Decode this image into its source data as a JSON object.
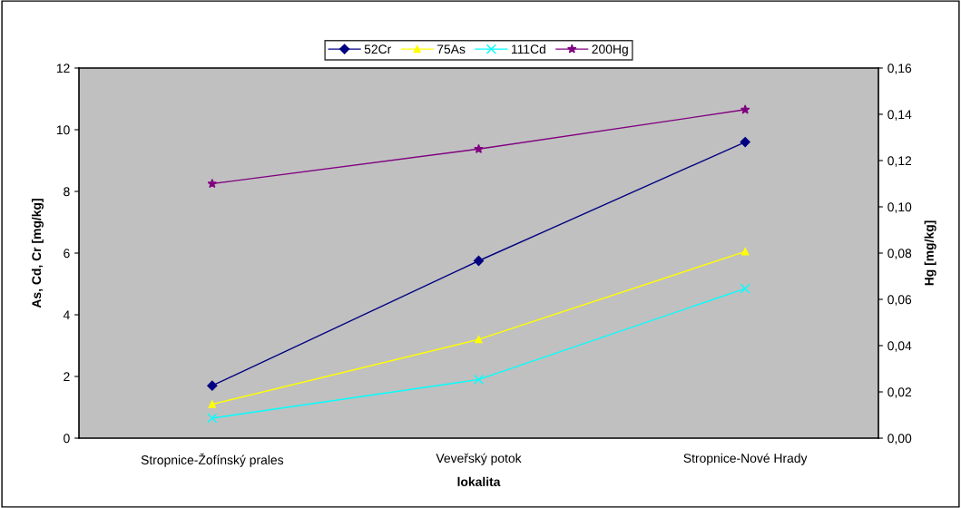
{
  "chart_data": {
    "type": "line",
    "xlabel": "lokalita",
    "ylabel": "As, Cd, Cr [mg/kg]",
    "y2label": "Hg [mg/kg]",
    "categories": [
      "Stropnice-Žofínský prales",
      "Veveřský potok",
      "Stropnice-Nové Hrady"
    ],
    "series": [
      {
        "name": "52Cr",
        "color": "#000080",
        "marker": "diamond",
        "values": [
          1.7,
          5.75,
          9.6
        ]
      },
      {
        "name": "75As",
        "color": "#ffff00",
        "marker": "triangle",
        "values": [
          1.1,
          3.2,
          6.05
        ]
      },
      {
        "name": "111Cd",
        "color": "#00ffff",
        "marker": "cross",
        "values": [
          0.65,
          1.9,
          4.85
        ]
      },
      {
        "name": "200Hg",
        "color": "#800080",
        "marker": "star",
        "axis": "y2",
        "values": [
          0.11,
          0.125,
          0.142
        ]
      }
    ],
    "ylim": [
      0,
      12
    ],
    "yticks": [
      0,
      2,
      4,
      6,
      8,
      10,
      12
    ],
    "y2lim": [
      0,
      0.16
    ],
    "y2ticks": [
      {
        "value": 0,
        "label": "0,00"
      },
      {
        "value": 0.02,
        "label": "0,02"
      },
      {
        "value": 0.04,
        "label": "0,04"
      },
      {
        "value": 0.06,
        "label": "0,06"
      },
      {
        "value": 0.08,
        "label": "0,08"
      },
      {
        "value": 0.1,
        "label": "0,10"
      },
      {
        "value": 0.12,
        "label": "0,12"
      },
      {
        "value": 0.14,
        "label": "0,14"
      },
      {
        "value": 0.16,
        "label": "0,16"
      }
    ],
    "grid": false,
    "legend": "top",
    "line_style": "solid"
  }
}
